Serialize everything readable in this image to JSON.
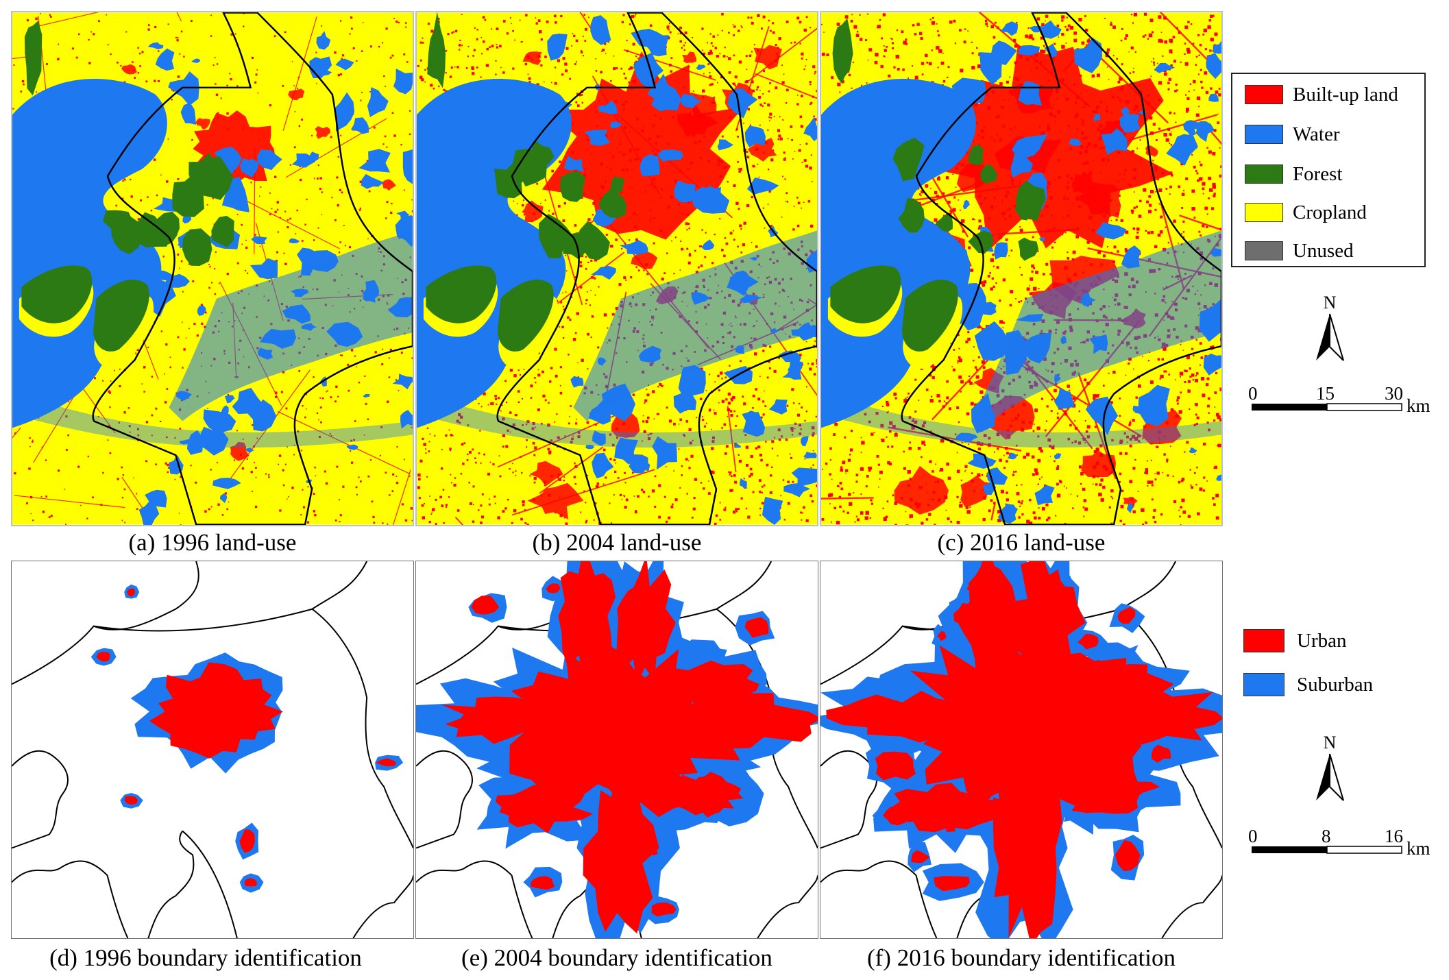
{
  "figure": {
    "panels": [
      {
        "id": "a",
        "caption": "(a) 1996 land-use",
        "kind": "land-use"
      },
      {
        "id": "b",
        "caption": "(b) 2004 land-use",
        "kind": "land-use"
      },
      {
        "id": "c",
        "caption": "(c) 2016 land-use",
        "kind": "land-use"
      },
      {
        "id": "d",
        "caption": "(d) 1996 boundary identification",
        "kind": "boundary"
      },
      {
        "id": "e",
        "caption": "(e) 2004 boundary identification",
        "kind": "boundary"
      },
      {
        "id": "f",
        "caption": "(f) 2016 boundary identification",
        "kind": "boundary"
      }
    ],
    "landuse_legend": [
      {
        "label": "Built-up land",
        "color": "#ff0000"
      },
      {
        "label": "Water",
        "color": "#1e78f0"
      },
      {
        "label": "Forest",
        "color": "#2b7a14"
      },
      {
        "label": "Cropland",
        "color": "#ffff00"
      },
      {
        "label": "Unused",
        "color": "#6e6e6e"
      }
    ],
    "boundary_legend": [
      {
        "label": "Urban",
        "color": "#ff0000"
      },
      {
        "label": "Suburban",
        "color": "#1e78f0"
      }
    ],
    "north_label": "N",
    "scale_top": {
      "ticks": [
        "0",
        "15",
        "30"
      ],
      "unit": "km"
    },
    "scale_bottom": {
      "ticks": [
        "0",
        "8",
        "16"
      ],
      "unit": "km"
    },
    "icons": [
      "north-arrow-icon",
      "scale-bar-icon"
    ]
  }
}
